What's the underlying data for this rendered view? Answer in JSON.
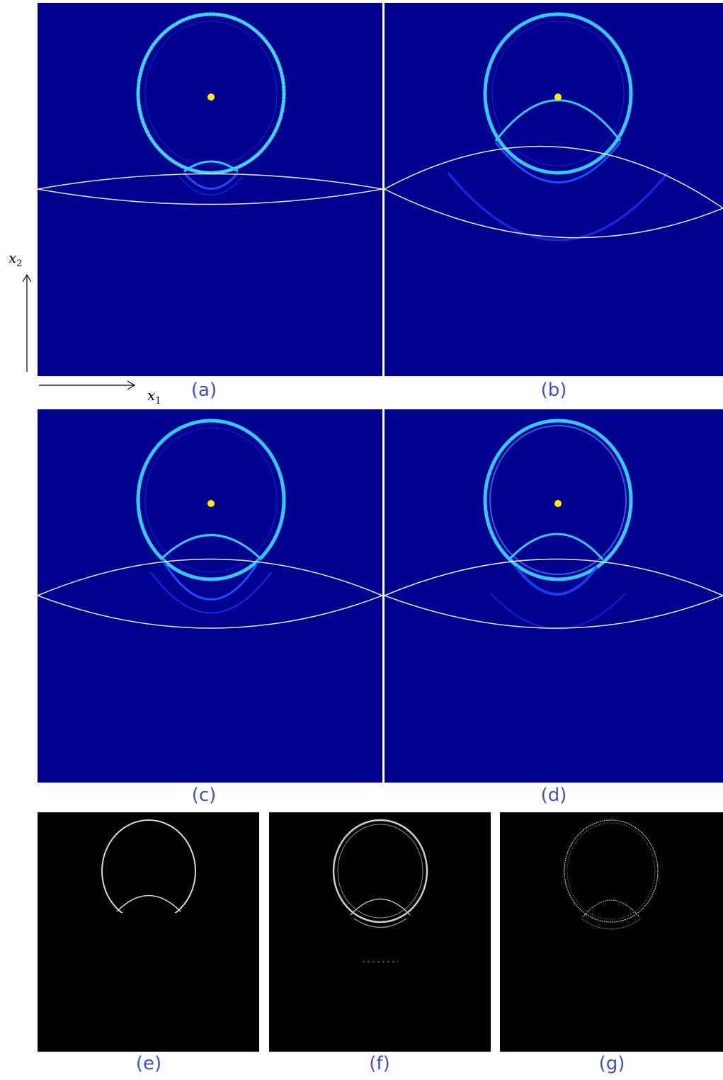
{
  "figure": {
    "axes": {
      "x_label": "x",
      "x_sub": "1",
      "y_label": "x",
      "y_sub": "2"
    },
    "captions": {
      "a": "(a)",
      "b": "(b)",
      "c": "(c)",
      "d": "(d)",
      "e": "(e)",
      "f": "(f)",
      "g": "(g)"
    },
    "colors": {
      "field_background": "#00008f",
      "wavefront_cyan": "#35c8ff",
      "wavefront_blue": "#1f4cff",
      "lens_outline": "#e8e8e8",
      "source_point": "#ffee00",
      "edge_background": "#000000",
      "edge_lines": "#d8d8d8"
    }
  }
}
